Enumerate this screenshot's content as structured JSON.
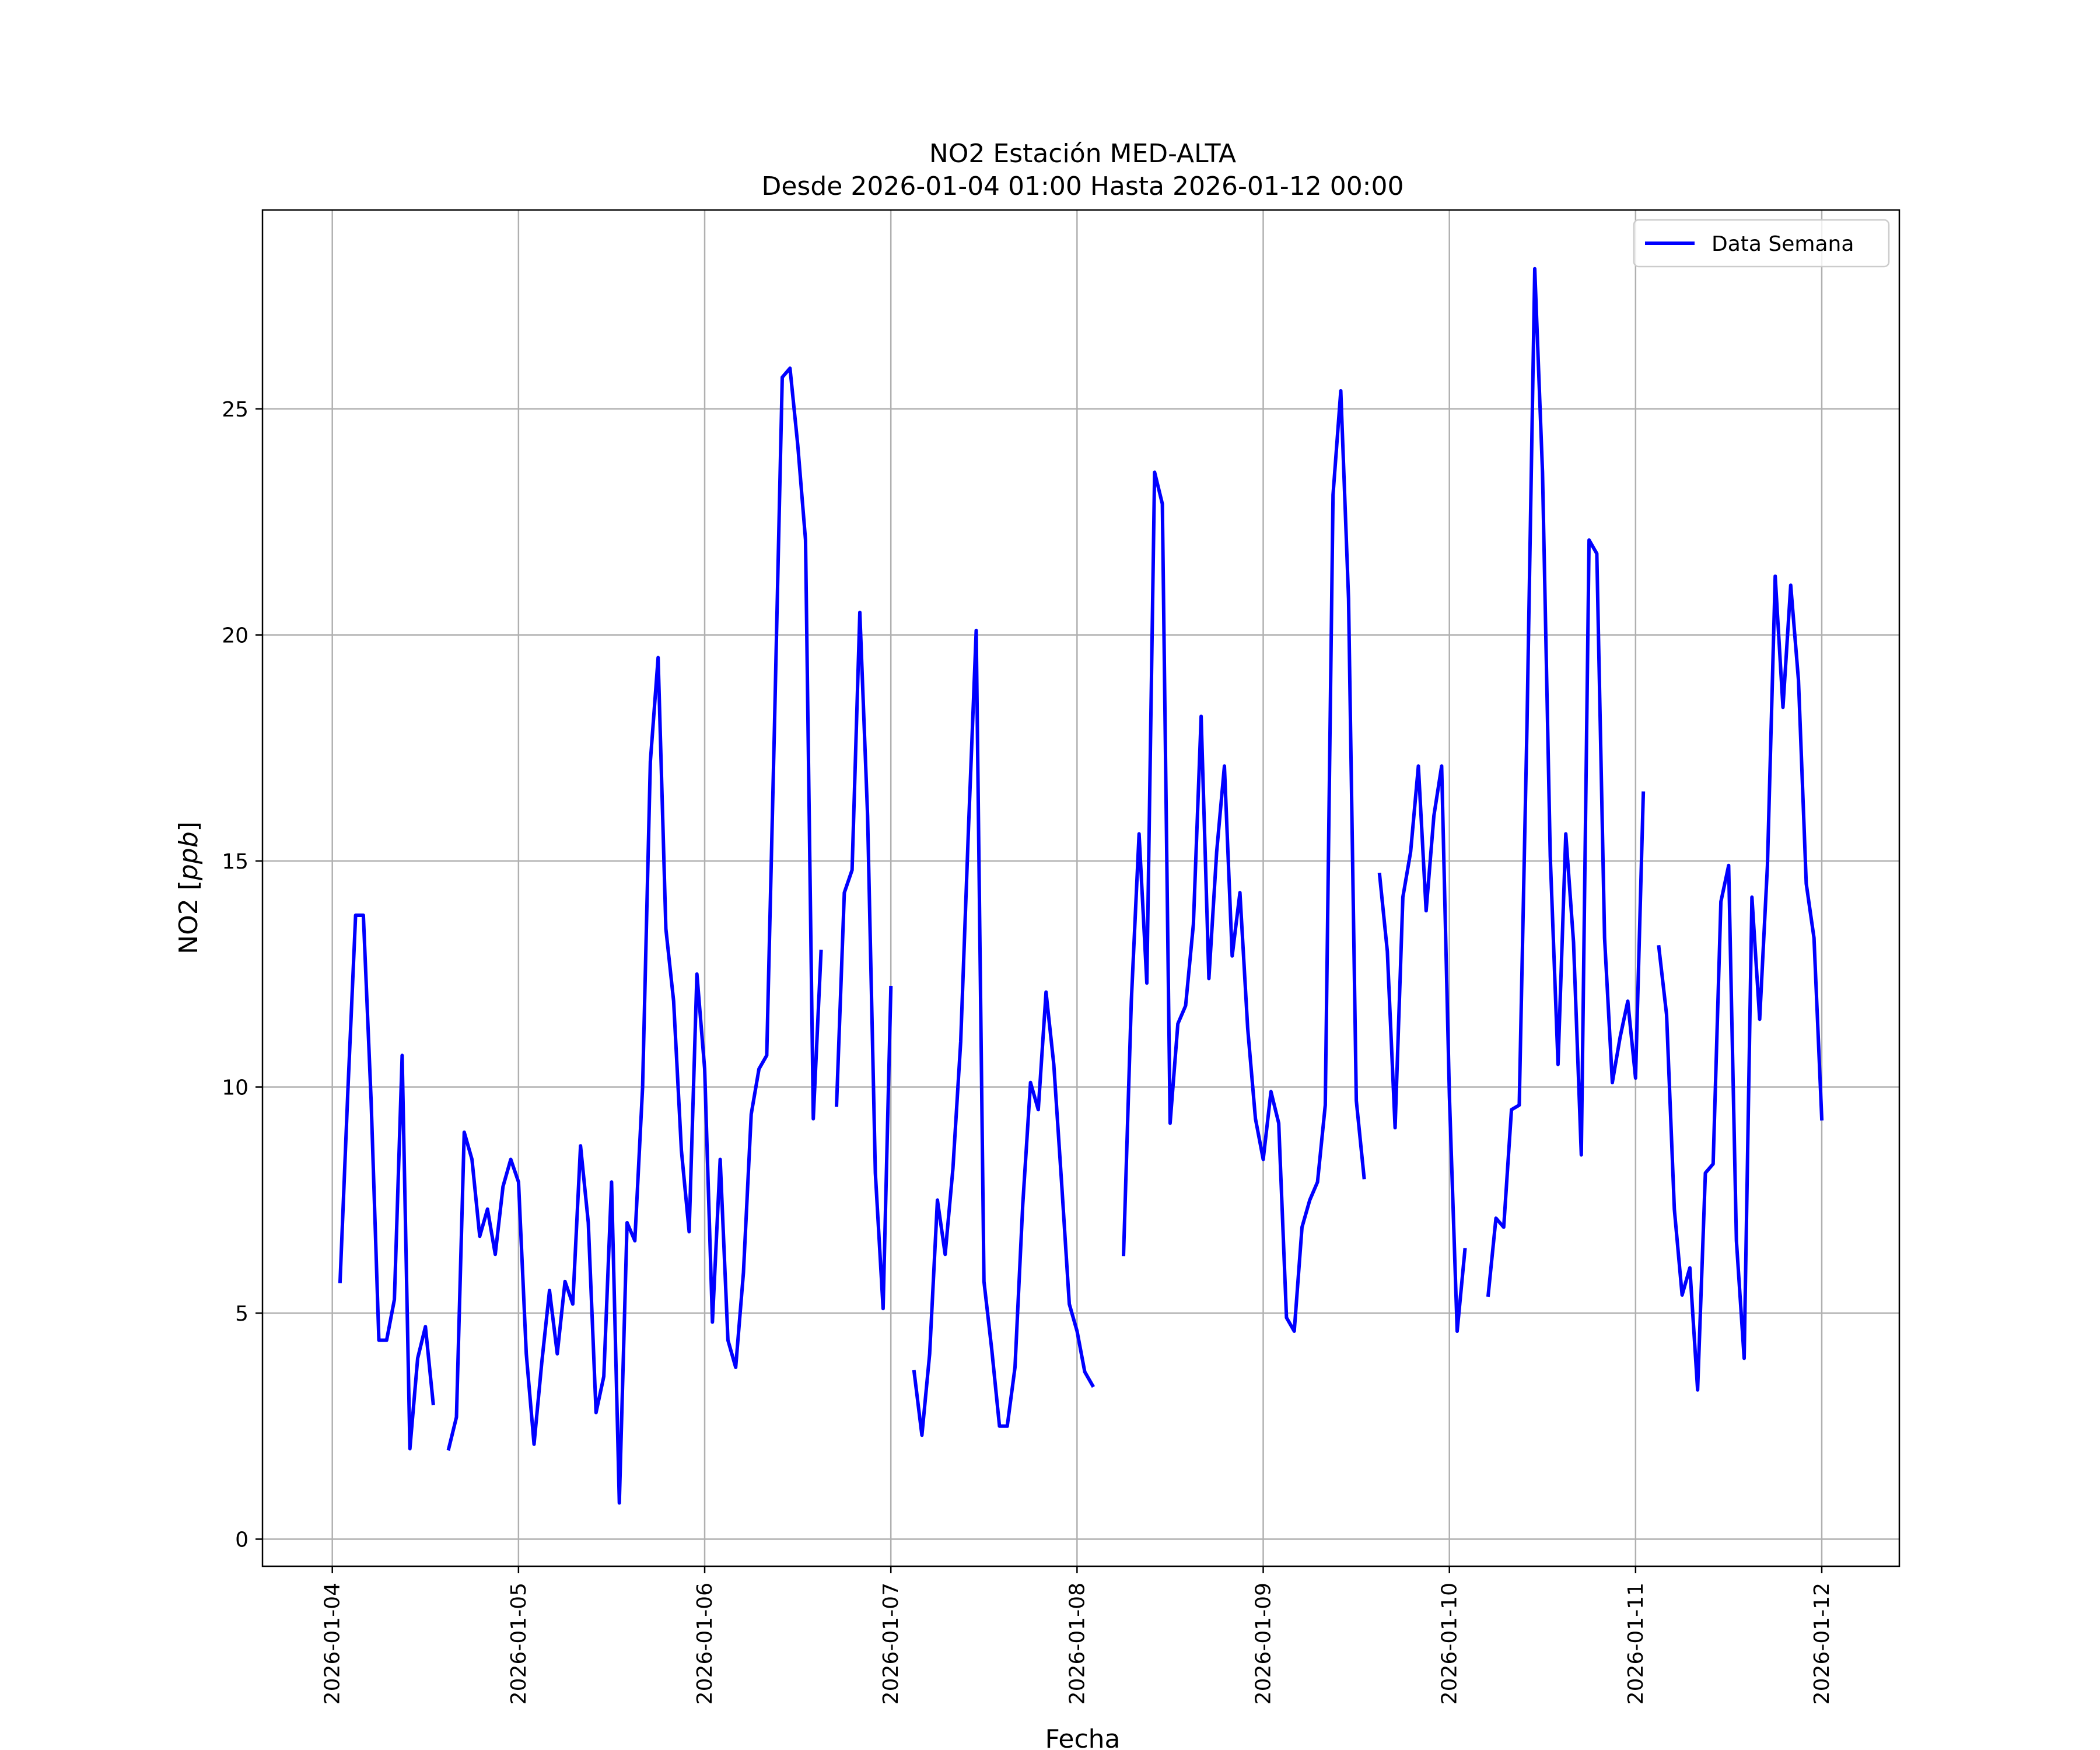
{
  "chart_data": {
    "type": "line",
    "title": "NO2 Estación MED-ALTA",
    "subtitle": "Desde 2026-01-04 01:00 Hasta 2026-01-12 00:00",
    "xlabel": "Fecha",
    "ylabel_main": "NO2 [",
    "ylabel_unit": "ppb",
    "ylabel_close": "]",
    "ylim": [
      -0.6,
      29.4
    ],
    "xlim": [
      "2026-01-03T15:00",
      "2026-01-12T10:00"
    ],
    "grid": true,
    "legend_position": "top-right",
    "x_ticks": [
      "2026-01-04",
      "2026-01-05",
      "2026-01-06",
      "2026-01-07",
      "2026-01-08",
      "2026-01-09",
      "2026-01-10",
      "2026-01-11",
      "2026-01-12"
    ],
    "y_ticks": [
      0,
      5,
      10,
      15,
      20,
      25
    ],
    "line_color": "#0000ff",
    "series": [
      {
        "name": "Data Semana",
        "segments": [
          {
            "start": "2026-01-04T01:00",
            "values": [
              5.7,
              9.9,
              13.8,
              13.8,
              9.7,
              4.4,
              4.4,
              5.3,
              10.7,
              2.0,
              4.0,
              4.7,
              3.0
            ]
          },
          {
            "start": "2026-01-04T15:00",
            "values": [
              2.0,
              2.7,
              9.0,
              8.4,
              6.7,
              7.3,
              6.3,
              7.8,
              8.4,
              7.9,
              4.1,
              2.1,
              3.9,
              5.5,
              4.1,
              5.7,
              5.2,
              8.7,
              7.0,
              2.8,
              3.6,
              7.9,
              0.8,
              7.0,
              6.6,
              10.0,
              17.2,
              19.5,
              13.5,
              11.9,
              8.6,
              6.8,
              12.5,
              10.4,
              4.8,
              8.4,
              4.4,
              3.8,
              5.9,
              9.4,
              10.4,
              10.7,
              18.0,
              25.7,
              25.9,
              24.2,
              22.1,
              9.3,
              13.0
            ]
          },
          {
            "start": "2026-01-06T17:00",
            "values": [
              9.6,
              14.3,
              14.8,
              20.5,
              16.0,
              8.1,
              5.1,
              12.2
            ]
          },
          {
            "start": "2026-01-07T03:00",
            "values": [
              3.7,
              2.3,
              4.1,
              7.5,
              6.3,
              8.2,
              11.0,
              15.7,
              20.1,
              5.7,
              4.2,
              2.5,
              2.5,
              3.8,
              7.4,
              10.1,
              9.5,
              12.1,
              10.5,
              7.9,
              5.2,
              4.6,
              3.7,
              3.4
            ]
          },
          {
            "start": "2026-01-08T06:00",
            "values": [
              6.3,
              11.9,
              15.6,
              12.3,
              23.6,
              22.9,
              9.2,
              11.4,
              11.8,
              13.6,
              18.2,
              12.4,
              15.2,
              17.1,
              12.9,
              14.3,
              11.3,
              9.3,
              8.4,
              9.9,
              9.2,
              4.9,
              4.6,
              6.9,
              7.5,
              7.9,
              9.6,
              23.1,
              25.4,
              20.8,
              9.7,
              8.0
            ]
          },
          {
            "start": "2026-01-09T15:00",
            "values": [
              14.7,
              13.0,
              9.1,
              14.2,
              15.2,
              17.1,
              13.9,
              16.0,
              17.1,
              9.8,
              4.6,
              6.4
            ]
          },
          {
            "start": "2026-01-10T05:00",
            "values": [
              5.4,
              7.1,
              6.9,
              9.5,
              9.6,
              18.0,
              28.1,
              23.6,
              15.1,
              10.5,
              15.6,
              13.2,
              8.5,
              22.1,
              21.8,
              13.3,
              10.1,
              11.1,
              11.9,
              10.2,
              16.5
            ]
          },
          {
            "start": "2026-01-11T03:00",
            "values": [
              13.1,
              11.6,
              7.3,
              5.4,
              6.0,
              3.3,
              8.1,
              8.3,
              14.1,
              14.9,
              6.6,
              4.0,
              14.2,
              11.5,
              14.9,
              21.3,
              18.4,
              21.1,
              19.0,
              14.5,
              13.3,
              9.3
            ]
          }
        ]
      }
    ]
  }
}
